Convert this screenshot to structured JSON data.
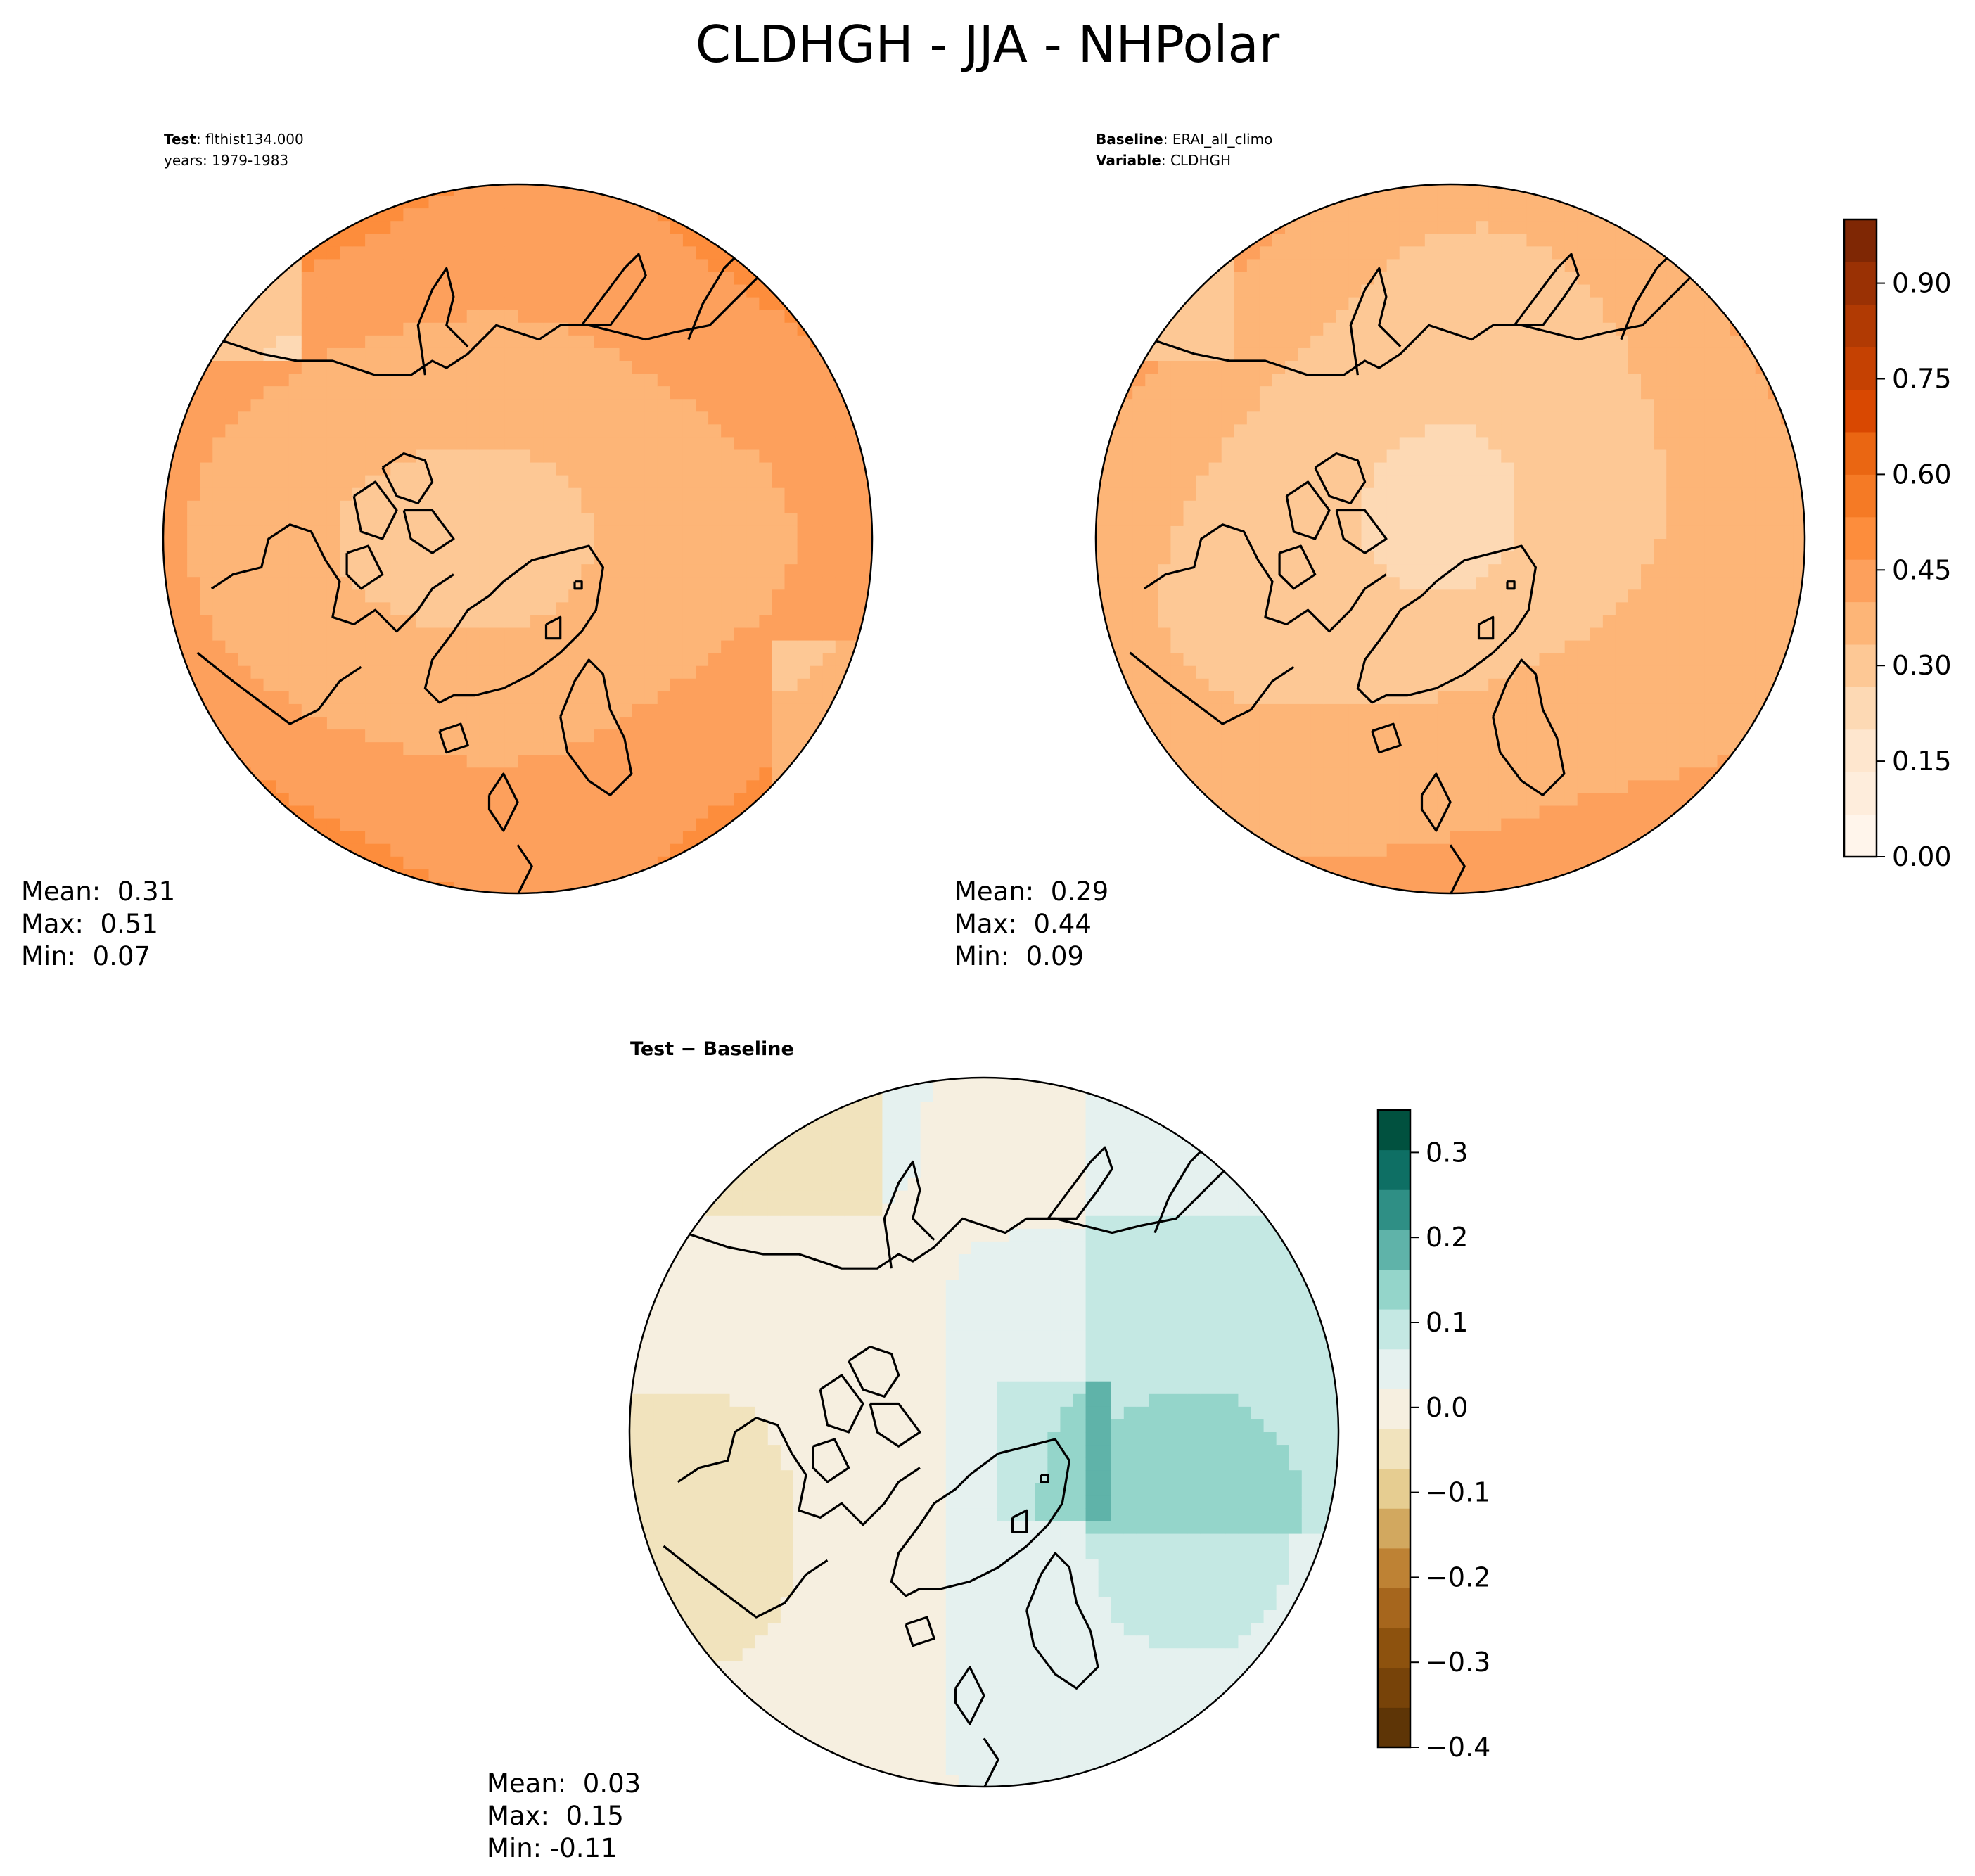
{
  "figure_title": "CLDHGH - JJA - NHPolar",
  "panels": {
    "test": {
      "line1_key": "Test",
      "line1_val": ": flthist134.000",
      "line2": "years: 1979-1983",
      "mean": "Mean:  0.31",
      "max": "Max:  0.51",
      "min": "Min:  0.07"
    },
    "baseline": {
      "line1_key": "Baseline",
      "line1_val": ": ERAI_all_climo",
      "line2_key": "Variable",
      "line2_val": ": CLDHGH",
      "mean": "Mean:  0.29",
      "max": "Max:  0.44",
      "min": "Min:  0.09"
    },
    "diff": {
      "title": "Test − Baseline",
      "mean": "Mean:  0.03",
      "max": "Max:  0.15",
      "min": "Min: -0.11"
    }
  },
  "chart_data": [
    {
      "type": "heatmap",
      "projection": "north polar stereographic",
      "name": "Test",
      "field": "CLDHGH",
      "mean": 0.31,
      "max": 0.51,
      "min": 0.07,
      "colormap": "Oranges",
      "colorbar": "shared",
      "levels_range": [
        0.0,
        1.0
      ]
    },
    {
      "type": "heatmap",
      "projection": "north polar stereographic",
      "name": "Baseline",
      "field": "CLDHGH",
      "mean": 0.29,
      "max": 0.44,
      "min": 0.09,
      "colormap": "Oranges",
      "colorbar": {
        "ticks": [
          0.0,
          0.15,
          0.3,
          0.45,
          0.6,
          0.75,
          0.9
        ],
        "tick_labels": [
          "0.00",
          "0.15",
          "0.30",
          "0.45",
          "0.60",
          "0.75",
          "0.90"
        ],
        "range": [
          0.0,
          1.0
        ],
        "colors": [
          "#fff5eb",
          "#feeddc",
          "#fee6ce",
          "#fdd9b4",
          "#fdc895",
          "#fdb577",
          "#fda05c",
          "#fd8d3c",
          "#f57a25",
          "#ea6612",
          "#d94801",
          "#c54102",
          "#b13a03",
          "#9a3104",
          "#7f2704"
        ]
      }
    },
    {
      "type": "heatmap",
      "projection": "north polar stereographic",
      "name": "Test − Baseline",
      "field": "CLDHGH",
      "mean": 0.03,
      "max": 0.15,
      "min": -0.11,
      "colormap": "BrBG",
      "colorbar": {
        "ticks": [
          -0.4,
          -0.3,
          -0.2,
          -0.1,
          0.0,
          0.1,
          0.2,
          0.3
        ],
        "tick_labels": [
          "−0.4",
          "−0.3",
          "−0.2",
          "−0.1",
          "0.0",
          "0.1",
          "0.2",
          "0.3"
        ],
        "range": [
          -0.4,
          0.35
        ],
        "colors": [
          "#5e3506",
          "#774309",
          "#8d520e",
          "#a6661d",
          "#be8234",
          "#d2a85f",
          "#e6cd91",
          "#f1e3bd",
          "#f6efe0",
          "#e5f1ef",
          "#c4e8e3",
          "#94d5ca",
          "#5fb3a9",
          "#2f8f85",
          "#0e6f64",
          "#01513f"
        ]
      }
    }
  ]
}
